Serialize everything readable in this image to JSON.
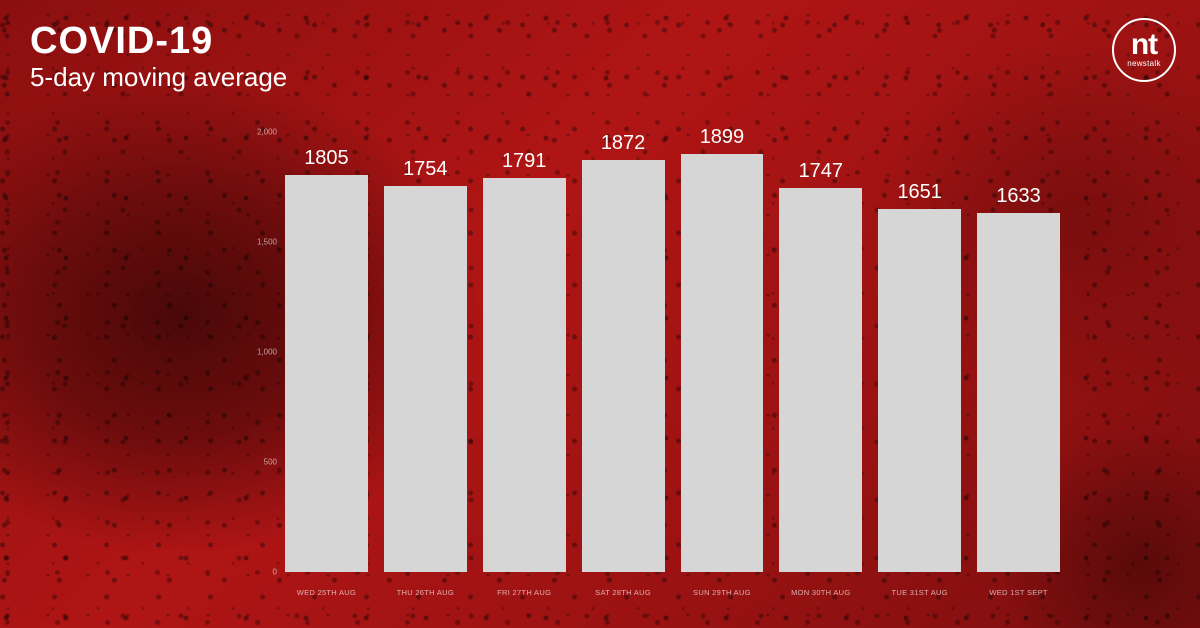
{
  "header": {
    "title": "COVID-19",
    "subtitle": "5-day moving average"
  },
  "logo": {
    "main": "nt",
    "sub": "newstalk"
  },
  "chart": {
    "type": "bar",
    "bar_color": "#d6d6d6",
    "value_color": "#ffffff",
    "value_fontsize": 20,
    "label_color": "rgba(255,255,255,0.65)",
    "label_fontsize": 8,
    "background_gradient": [
      "#8b0f0f",
      "#b01515",
      "#7a0e0e"
    ],
    "ylim": [
      0,
      2000
    ],
    "yticks": [
      {
        "value": 0,
        "label": "0",
        "pos_pct": 100
      },
      {
        "value": 500,
        "label": "500",
        "pos_pct": 75
      },
      {
        "value": 1000,
        "label": "1,000",
        "pos_pct": 50
      },
      {
        "value": 1500,
        "label": "1,500",
        "pos_pct": 25
      },
      {
        "value": 2000,
        "label": "2,000",
        "pos_pct": 0
      }
    ],
    "bars": [
      {
        "label": "WED 25TH AUG",
        "value": 1805,
        "height_pct": 90.25
      },
      {
        "label": "THU 26TH AUG",
        "value": 1754,
        "height_pct": 87.7
      },
      {
        "label": "FRI 27TH AUG",
        "value": 1791,
        "height_pct": 89.55
      },
      {
        "label": "SAT 28TH AUG",
        "value": 1872,
        "height_pct": 93.6
      },
      {
        "label": "SUN 29TH AUG",
        "value": 1899,
        "height_pct": 94.95
      },
      {
        "label": "MON 30TH AUG",
        "value": 1747,
        "height_pct": 87.35
      },
      {
        "label": "TUE 31ST AUG",
        "value": 1651,
        "height_pct": 82.55
      },
      {
        "label": "WED 1ST SEPT",
        "value": 1633,
        "height_pct": 81.65
      }
    ]
  }
}
